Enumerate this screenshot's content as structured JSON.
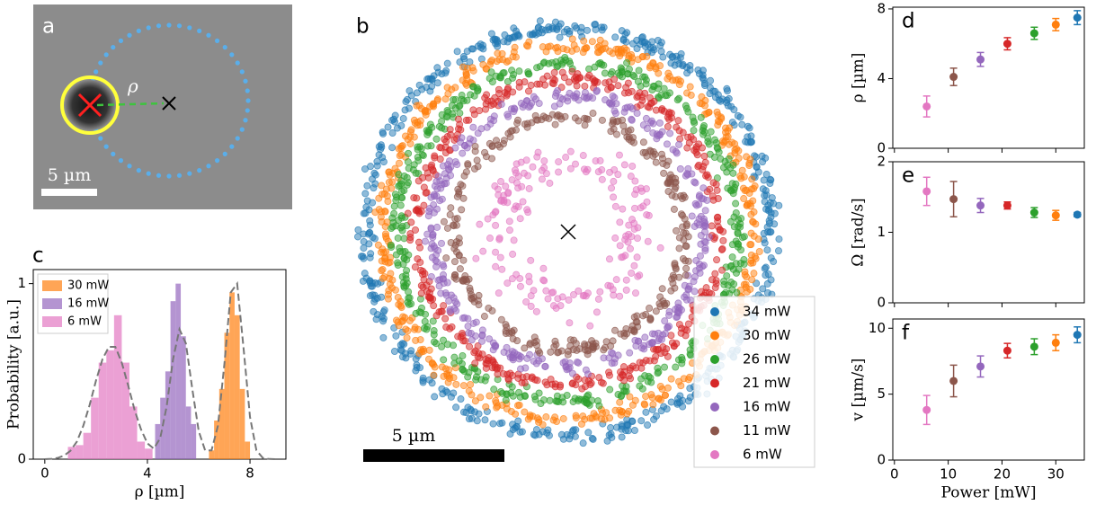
{
  "chart_data": [
    {
      "type": "image",
      "panel_label": "a",
      "annotation": "ρ",
      "scale_bar_label": "5 µm"
    },
    {
      "type": "rings",
      "panel_label": "b",
      "scale_bar_label": "5 µm",
      "scale_bar_length": 5,
      "series": [
        {
          "name": "34 mW",
          "color": "#1f77b4",
          "radius": 7.2
        },
        {
          "name": "30 mW",
          "color": "#ff7f0e",
          "radius": 6.6
        },
        {
          "name": "26 mW",
          "color": "#2ca02c",
          "radius": 6.0
        },
        {
          "name": "21 mW",
          "color": "#d62728",
          "radius": 5.4
        },
        {
          "name": "16 mW",
          "color": "#9467bd",
          "radius": 4.8
        },
        {
          "name": "11 mW",
          "color": "#8c564b",
          "radius": 4.1
        },
        {
          "name": "6 mW",
          "color": "#e377c2",
          "radius": 2.5
        }
      ]
    },
    {
      "type": "histogram",
      "panel_label": "c",
      "xlabel": "ρ [µm]",
      "ylabel": "Probability [a.u.]",
      "xlim": [
        -0.45,
        9.4
      ],
      "ylim": [
        0,
        1.08
      ],
      "xticks": [
        0,
        4,
        8
      ],
      "yticks": [
        0,
        1
      ],
      "series": [
        {
          "name": "30 mW",
          "color": "#ff7f0e",
          "bins": [
            6.4,
            6.6,
            6.8,
            7.0,
            7.2,
            7.4,
            7.6,
            7.8,
            8.0
          ],
          "values": [
            0.05,
            0.22,
            0.4,
            0.72,
            0.95,
            0.82,
            0.4,
            0.1
          ]
        },
        {
          "name": "16 mW",
          "color": "#9467bd",
          "bins": [
            4.3,
            4.5,
            4.7,
            4.9,
            5.1,
            5.3,
            5.5,
            5.7,
            5.9
          ],
          "values": [
            0.2,
            0.35,
            0.5,
            0.9,
            1.0,
            0.7,
            0.3,
            0.2
          ]
        },
        {
          "name": "6 mW",
          "color": "#e377c2",
          "bins": [
            0.9,
            1.2,
            1.5,
            1.8,
            2.1,
            2.4,
            2.7,
            3.0,
            3.3,
            3.6,
            3.9,
            4.2
          ],
          "values": [
            0.07,
            0.08,
            0.15,
            0.35,
            0.55,
            0.62,
            0.82,
            0.55,
            0.3,
            0.1,
            0.06
          ]
        }
      ],
      "fit_line": {
        "x": [
          0,
          0.25,
          0.5,
          0.75,
          1,
          1.25,
          1.5,
          1.75,
          2,
          2.25,
          2.5,
          2.75,
          3,
          3.25,
          3.5,
          3.75,
          4,
          4.25,
          4.5,
          4.75,
          5,
          5.25,
          5.5,
          5.75,
          6,
          6.25,
          6.5,
          6.75,
          7,
          7.25,
          7.5,
          7.75,
          8,
          8.25,
          8.5,
          8.75,
          9
        ],
        "values": [
          0,
          0.002,
          0.007,
          0.02,
          0.048,
          0.1,
          0.19,
          0.31,
          0.45,
          0.57,
          0.64,
          0.64,
          0.55,
          0.42,
          0.28,
          0.17,
          0.09,
          0.06,
          0.12,
          0.3,
          0.57,
          0.74,
          0.66,
          0.4,
          0.16,
          0.05,
          0.05,
          0.19,
          0.54,
          0.95,
          1.0,
          0.63,
          0.24,
          0.05,
          0.007,
          0.001,
          0
        ]
      }
    },
    {
      "type": "errorbar",
      "panel_label": "d",
      "ylabel": "ρ [µm]",
      "x": [
        6,
        11,
        16,
        21,
        26,
        30,
        34
      ],
      "values": [
        2.4,
        4.1,
        5.1,
        6.0,
        6.6,
        7.1,
        7.5
      ],
      "errors": [
        0.6,
        0.5,
        0.4,
        0.35,
        0.35,
        0.35,
        0.4
      ],
      "colors": [
        "#e377c2",
        "#8c564b",
        "#9467bd",
        "#d62728",
        "#2ca02c",
        "#ff7f0e",
        "#1f77b4"
      ],
      "xlim": [
        -0.3,
        35.3
      ],
      "ylim": [
        0,
        8.1
      ],
      "xticks": [
        0,
        10,
        20,
        30
      ],
      "yticks": [
        0,
        4,
        8
      ]
    },
    {
      "type": "errorbar",
      "panel_label": "e",
      "ylabel": "Ω [rad/s]",
      "x": [
        6,
        11,
        16,
        21,
        26,
        30,
        34
      ],
      "values": [
        1.58,
        1.47,
        1.38,
        1.38,
        1.28,
        1.24,
        1.25
      ],
      "errors": [
        0.2,
        0.25,
        0.1,
        0.05,
        0.07,
        0.07,
        0.03
      ],
      "colors": [
        "#e377c2",
        "#8c564b",
        "#9467bd",
        "#d62728",
        "#2ca02c",
        "#ff7f0e",
        "#1f77b4"
      ],
      "xlim": [
        -0.3,
        35.3
      ],
      "ylim": [
        0,
        2
      ],
      "xticks": [
        0,
        10,
        20,
        30
      ],
      "yticks": [
        0,
        1,
        2
      ]
    },
    {
      "type": "errorbar",
      "panel_label": "f",
      "ylabel": "v [µm/s]",
      "xlabel": "Power [mW]",
      "x": [
        6,
        11,
        16,
        21,
        26,
        30,
        34
      ],
      "values": [
        3.8,
        6.0,
        7.1,
        8.3,
        8.6,
        8.9,
        9.5
      ],
      "errors": [
        1.1,
        1.2,
        0.8,
        0.55,
        0.6,
        0.6,
        0.6
      ],
      "colors": [
        "#e377c2",
        "#8c564b",
        "#9467bd",
        "#d62728",
        "#2ca02c",
        "#ff7f0e",
        "#1f77b4"
      ],
      "xlim": [
        -0.3,
        35.3
      ],
      "ylim": [
        0,
        10.7
      ],
      "xticks": [
        0,
        10,
        20,
        30
      ],
      "yticks": [
        0,
        5,
        10
      ]
    }
  ]
}
